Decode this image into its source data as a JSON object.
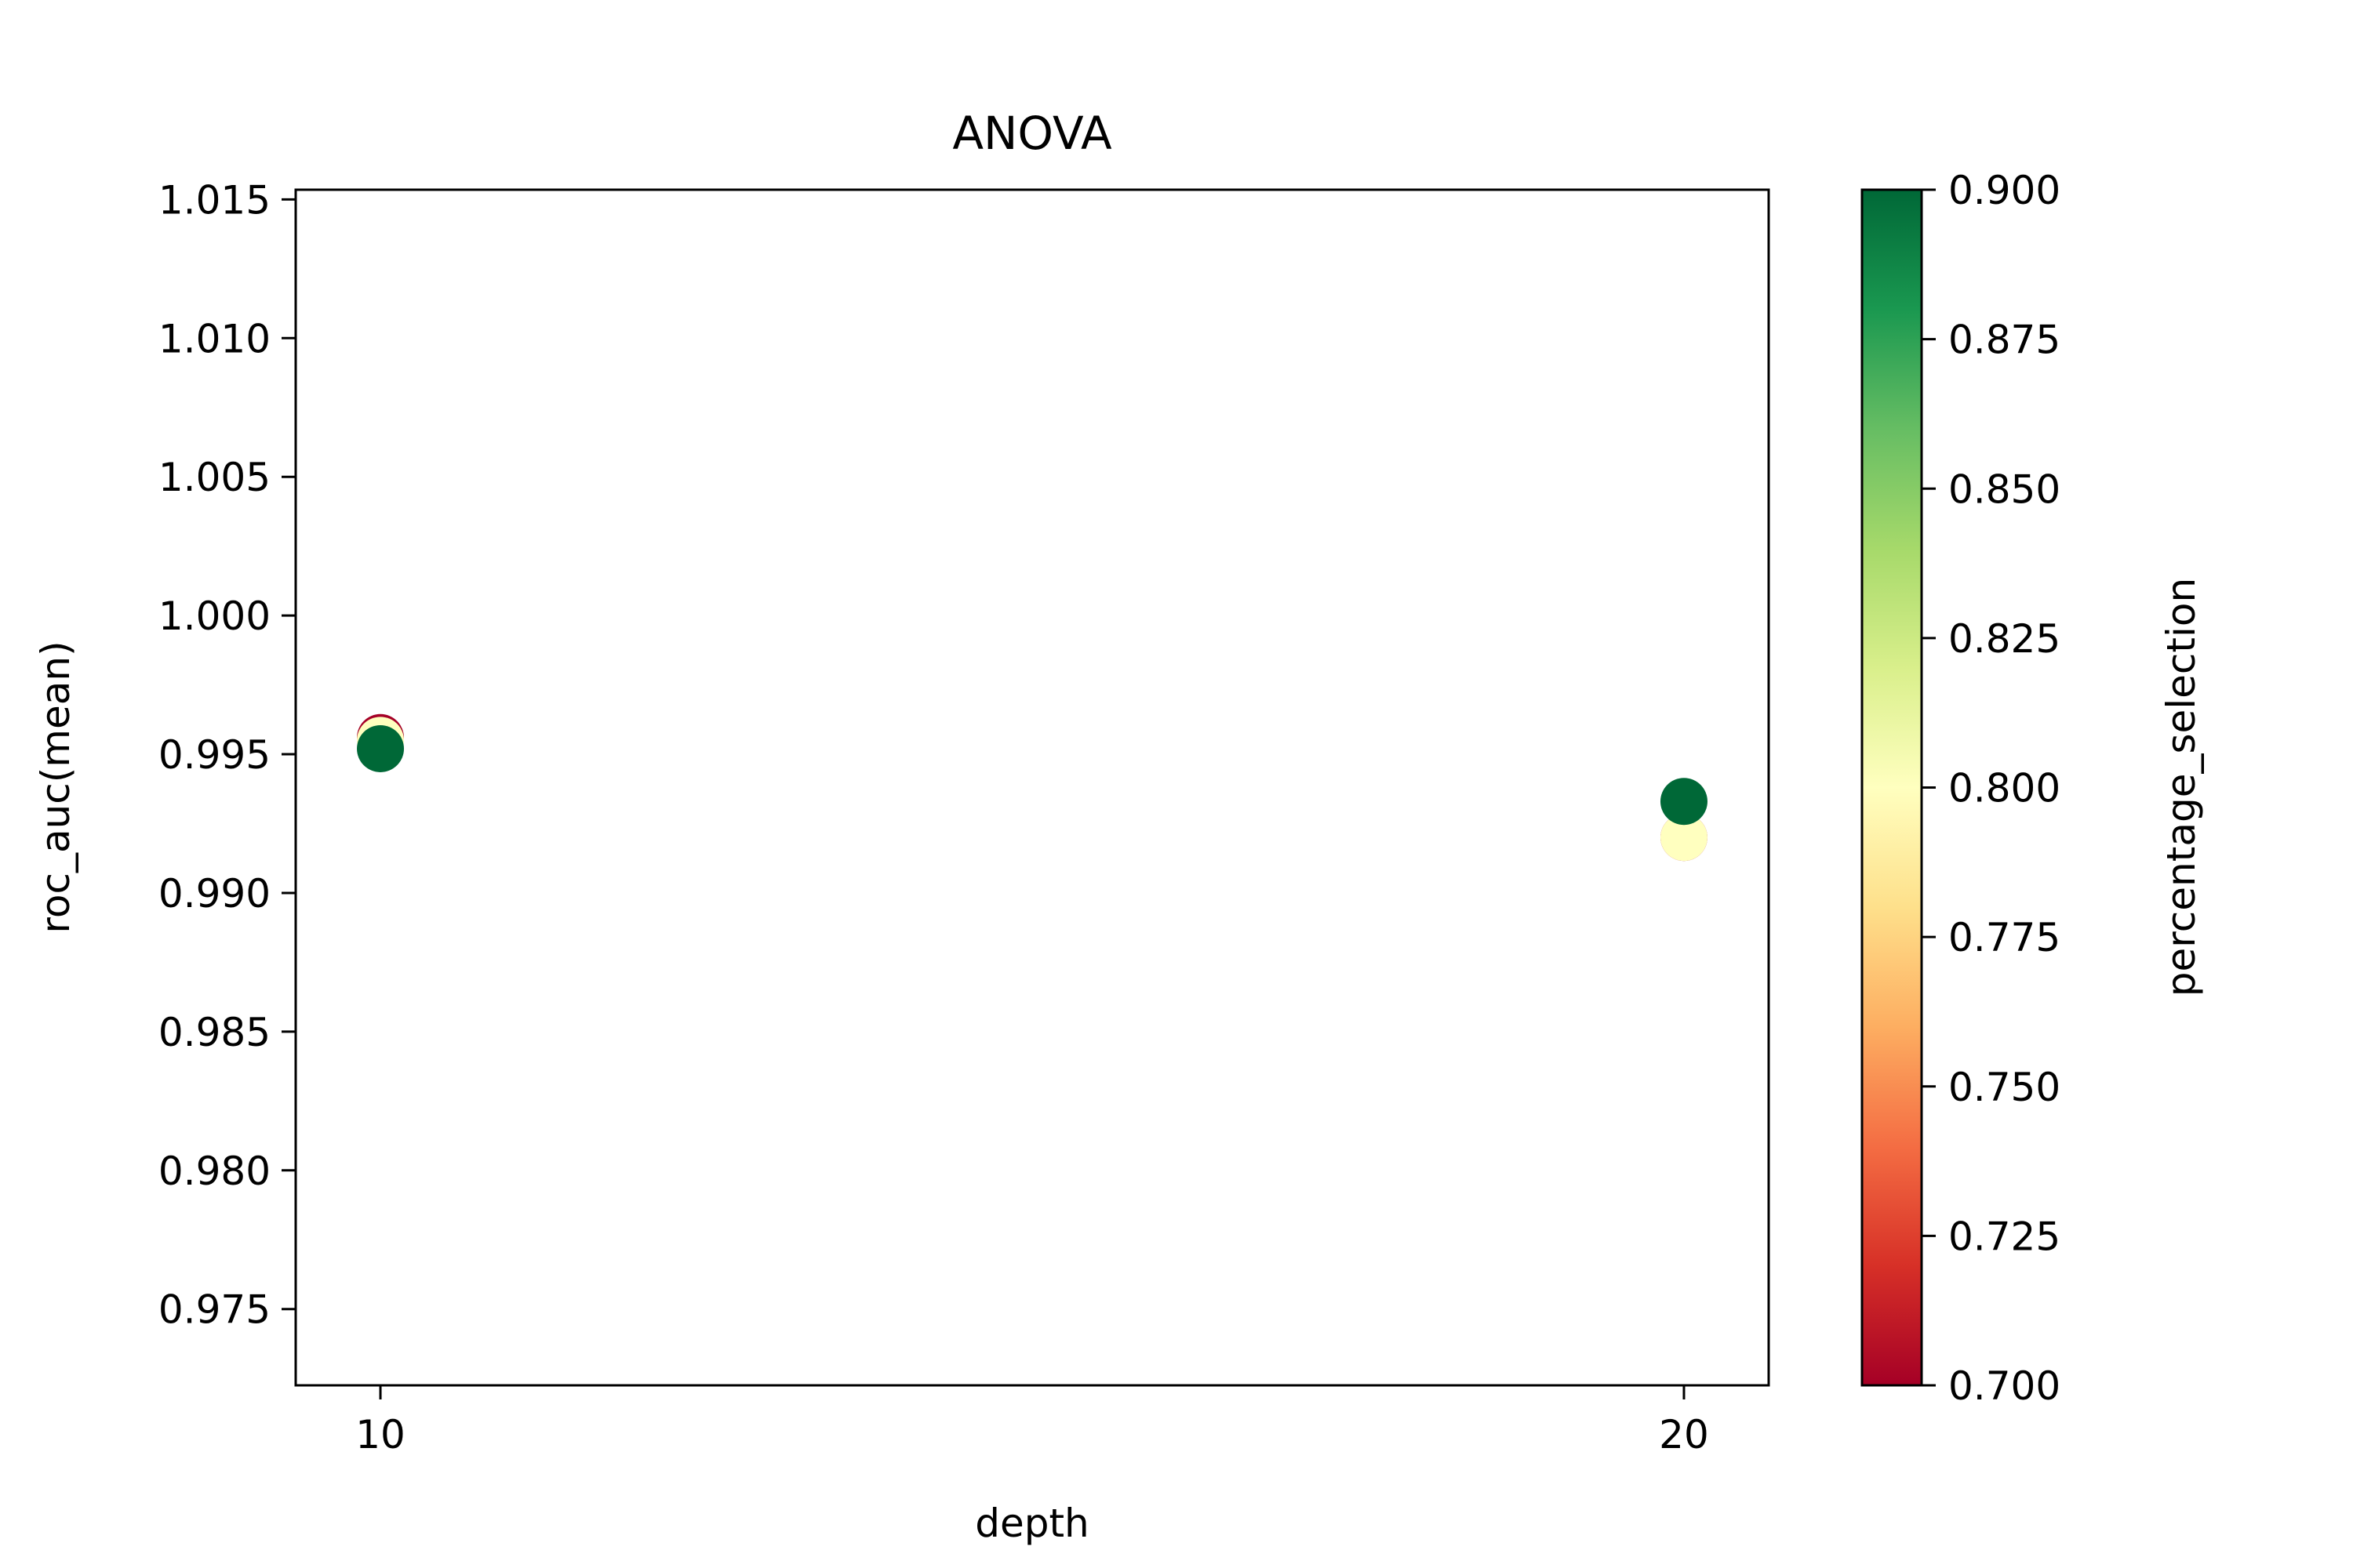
{
  "chart_data": {
    "type": "scatter",
    "title": "ANOVA",
    "xlabel": "depth",
    "ylabel": "roc_auc(mean)",
    "xlim": [
      9.35,
      20.65
    ],
    "ylim": [
      0.97225,
      1.01535
    ],
    "xticks": [
      10,
      20
    ],
    "xtick_labels": [
      "10",
      "20"
    ],
    "yticks": [
      0.975,
      0.98,
      0.985,
      0.99,
      0.995,
      1.0,
      1.005,
      1.01,
      1.015
    ],
    "ytick_labels": [
      "0.975",
      "0.980",
      "0.985",
      "0.990",
      "0.995",
      "1.000",
      "1.005",
      "1.010",
      "1.015"
    ],
    "grid": false,
    "colorbar": {
      "label": "percentage_selection",
      "min": 0.7,
      "max": 0.9,
      "colormap": "RdYlGn",
      "ticks": [
        0.7,
        0.725,
        0.75,
        0.775,
        0.8,
        0.825,
        0.85,
        0.875,
        0.9
      ],
      "tick_labels": [
        "0.700",
        "0.725",
        "0.750",
        "0.775",
        "0.800",
        "0.825",
        "0.850",
        "0.875",
        "0.900"
      ],
      "stops": [
        "#a50026",
        "#d73027",
        "#f46d43",
        "#fdae61",
        "#fee08b",
        "#ffffbf",
        "#d9ef8b",
        "#a6d96a",
        "#66bd63",
        "#1a9850",
        "#006837"
      ]
    },
    "points": [
      {
        "x": 10,
        "y": 0.9956,
        "c": 0.7
      },
      {
        "x": 10,
        "y": 0.9955,
        "c": 0.8
      },
      {
        "x": 10,
        "y": 0.9952,
        "c": 0.9
      },
      {
        "x": 20,
        "y": 0.992,
        "c": 0.7
      },
      {
        "x": 20,
        "y": 0.992,
        "c": 0.8
      },
      {
        "x": 20,
        "y": 0.9933,
        "c": 0.9
      }
    ]
  }
}
